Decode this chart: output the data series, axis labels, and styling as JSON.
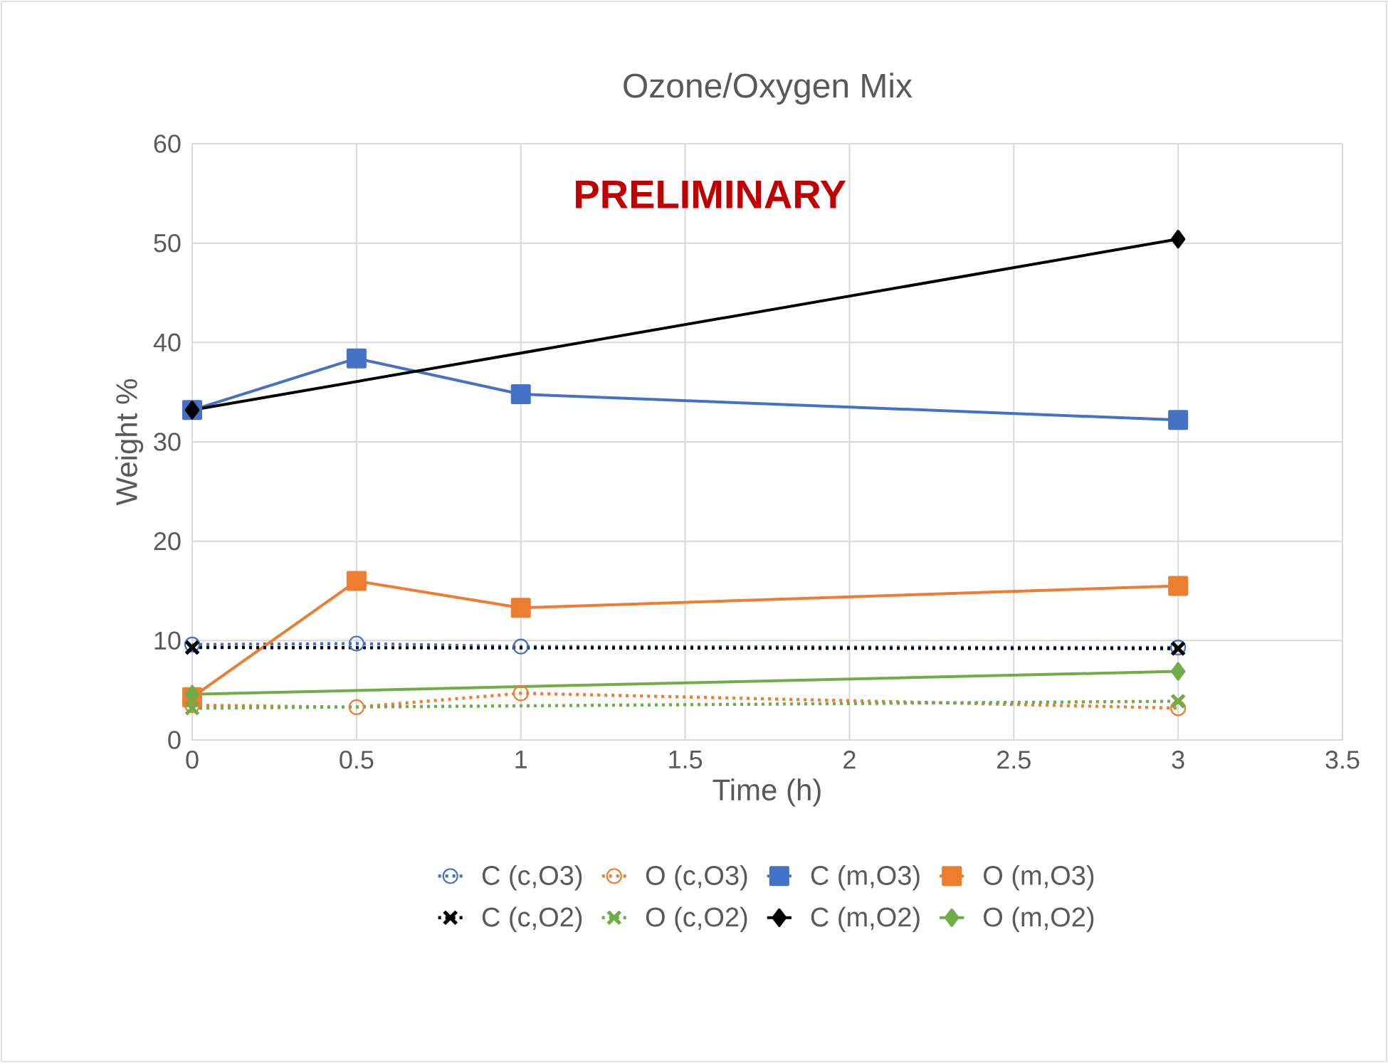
{
  "chart_data": {
    "type": "line",
    "title": "Ozone/Oxygen Mix",
    "xlabel": "Time (h)",
    "ylabel": "Weight %",
    "x": [
      0,
      0.5,
      1,
      3
    ],
    "xlim": [
      0,
      3.5
    ],
    "xticks": [
      0,
      0.5,
      1,
      1.5,
      2,
      2.5,
      3,
      3.5
    ],
    "ylim": [
      0,
      60
    ],
    "yticks": [
      0,
      10,
      20,
      30,
      40,
      50,
      60
    ],
    "grid": true,
    "legend": "bottom",
    "annotations": [
      "PRELIMINARY"
    ],
    "series": [
      {
        "name": "C (c,O3)",
        "color": "#4472c4",
        "marker": "circle",
        "line_style": "dotted",
        "values": [
          9.6,
          9.7,
          9.4,
          9.3
        ]
      },
      {
        "name": "O (c,O3)",
        "color": "#ed7d31",
        "marker": "circle",
        "line_style": "dotted",
        "values": [
          3.5,
          3.3,
          4.7,
          3.2
        ]
      },
      {
        "name": "C (m,O3)",
        "color": "#4472c4",
        "marker": "square",
        "line_style": "solid",
        "values": [
          33.2,
          38.4,
          34.8,
          32.2
        ]
      },
      {
        "name": "O (m,O3)",
        "color": "#ed7d31",
        "marker": "square",
        "line_style": "solid",
        "values": [
          4.3,
          16.0,
          13.3,
          15.5
        ]
      },
      {
        "name": "C (c,O2)",
        "color": "#000000",
        "marker": "cross",
        "line_style": "dotted",
        "values": [
          9.3,
          null,
          null,
          9.2
        ]
      },
      {
        "name": "O (c,O2)",
        "color": "#70ad47",
        "marker": "cross",
        "line_style": "dotted",
        "values": [
          3.2,
          null,
          null,
          3.9
        ]
      },
      {
        "name": "C (m,O2)",
        "color": "#000000",
        "marker": "diamond",
        "line_style": "solid",
        "values": [
          33.2,
          null,
          null,
          50.4
        ]
      },
      {
        "name": "O (m,O2)",
        "color": "#70ad47",
        "marker": "diamond",
        "line_style": "solid",
        "values": [
          4.6,
          null,
          null,
          6.9
        ]
      }
    ]
  }
}
